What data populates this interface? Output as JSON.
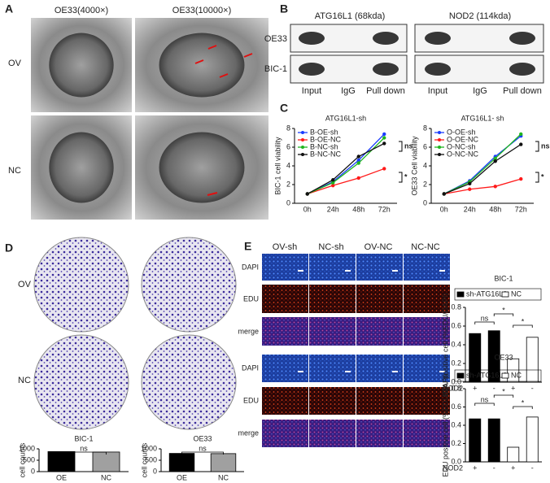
{
  "panels": {
    "A": {
      "label": "A",
      "columns": [
        "OE33(4000×)",
        "OE33(10000×)"
      ],
      "rows": [
        "OV",
        "NC"
      ]
    },
    "B": {
      "label": "B",
      "blots": [
        {
          "protein": "ATG16L1 (68kda)",
          "lanes": [
            "Input",
            "IgG",
            "Pull down"
          ]
        },
        {
          "protein": "NOD2 (114kda)",
          "lanes": [
            "Input",
            "IgG",
            "Pull down"
          ]
        }
      ],
      "rows": [
        "OE33",
        "BIC-1"
      ]
    },
    "C": {
      "label": "C"
    },
    "D": {
      "label": "D",
      "rows": [
        "OV",
        "NC"
      ]
    },
    "E": {
      "label": "E",
      "columns": [
        "OV-sh",
        "NC-sh",
        "OV-NC",
        "NC-NC"
      ],
      "groups": [
        {
          "rows": [
            "DAPI",
            "EDU",
            "merge"
          ]
        },
        {
          "rows": [
            "DAPI",
            "EDU",
            "merge"
          ]
        }
      ]
    }
  },
  "chart_data": [
    {
      "type": "line",
      "title": "ATG16L1-sh",
      "ylabel": "BIC-1 cell viability",
      "categories": [
        "0h",
        "24h",
        "48h",
        "72h"
      ],
      "series": [
        {
          "name": "B-OE-sh",
          "color": "#1a3cff",
          "values": [
            1,
            2.3,
            4.6,
            7.4
          ]
        },
        {
          "name": "B-OE-NC",
          "color": "#ff1a1a",
          "values": [
            1,
            1.9,
            2.7,
            3.7
          ]
        },
        {
          "name": "B-NC-sh",
          "color": "#1fb51f",
          "values": [
            1,
            2.2,
            4.3,
            7.0
          ]
        },
        {
          "name": "B-NC-NC",
          "color": "#111111",
          "values": [
            1,
            2.5,
            5.0,
            6.4
          ]
        }
      ],
      "ylim": [
        0,
        8
      ],
      "yticks": [
        0,
        2,
        4,
        6,
        8
      ],
      "annotations": [
        "ns",
        "*"
      ]
    },
    {
      "type": "line",
      "title": "ATG16L1- sh",
      "ylabel": "OE33 Cell viability",
      "categories": [
        "0h",
        "24h",
        "48h",
        "72h"
      ],
      "series": [
        {
          "name": "O-OE-sh",
          "color": "#1a3cff",
          "values": [
            1,
            2.4,
            5.0,
            7.2
          ]
        },
        {
          "name": "O-OE-NC",
          "color": "#ff1a1a",
          "values": [
            1,
            1.5,
            1.8,
            2.6
          ]
        },
        {
          "name": "O-NC-sh",
          "color": "#1fb51f",
          "values": [
            1,
            2.3,
            4.8,
            7.4
          ]
        },
        {
          "name": "O-NC-NC",
          "color": "#111111",
          "values": [
            1,
            2.1,
            4.5,
            6.3
          ]
        }
      ],
      "ylim": [
        0,
        8
      ],
      "yticks": [
        0,
        2,
        4,
        6,
        8
      ],
      "annotations": [
        "ns",
        "*"
      ]
    },
    {
      "type": "bar",
      "title": "BIC-1",
      "ylabel": "cell counts",
      "categories": [
        "OE",
        "NC"
      ],
      "values": [
        880,
        860
      ],
      "colors": [
        "#000000",
        "#a0a0a0"
      ],
      "ylim": [
        0,
        1000
      ],
      "yticks": [
        0,
        500,
        1000
      ],
      "annotations": [
        "ns"
      ]
    },
    {
      "type": "bar",
      "title": "OE33",
      "ylabel": "cell counts",
      "categories": [
        "OE",
        "NC"
      ],
      "values": [
        800,
        790
      ],
      "colors": [
        "#000000",
        "#a0a0a0"
      ],
      "ylim": [
        0,
        1000
      ],
      "yticks": [
        0,
        500,
        1000
      ],
      "annotations": [
        "ns"
      ]
    },
    {
      "type": "bar",
      "title": "BIC-1",
      "ylabel": "EDU positive cell (%EDU/DAPI)",
      "categories": [
        "+",
        "-",
        "+",
        "-"
      ],
      "x_row_label": "NOD2",
      "series": [
        {
          "name": "sh-ATG16L1",
          "color": "#000000",
          "values": [
            0.52,
            0.55,
            null,
            null
          ]
        },
        {
          "name": "NC",
          "color": "#ffffff",
          "values": [
            null,
            null,
            0.25,
            0.48
          ]
        }
      ],
      "ylim": [
        0,
        0.8
      ],
      "yticks": [
        {
          "value": 0,
          "label": "0.0"
        },
        0.2,
        0.4,
        0.6,
        0.8
      ],
      "annotations": [
        "ns",
        "*",
        "*"
      ]
    },
    {
      "type": "bar",
      "title": "OE33",
      "ylabel": "EDU positive cell (%EDU/DAPI)",
      "categories": [
        "+",
        "-",
        "+",
        "-"
      ],
      "x_row_label": "NOD2",
      "series": [
        {
          "name": "sh-ATG16L1",
          "color": "#000000",
          "values": [
            0.47,
            0.47,
            null,
            null
          ]
        },
        {
          "name": "NC",
          "color": "#ffffff",
          "values": [
            null,
            null,
            0.16,
            0.49
          ]
        }
      ],
      "ylim": [
        0,
        0.8
      ],
      "yticks": [
        {
          "value": 0,
          "label": "0.0"
        },
        0.2,
        0.4,
        0.6,
        0.8
      ],
      "annotations": [
        "ns",
        "*",
        "*"
      ]
    }
  ]
}
